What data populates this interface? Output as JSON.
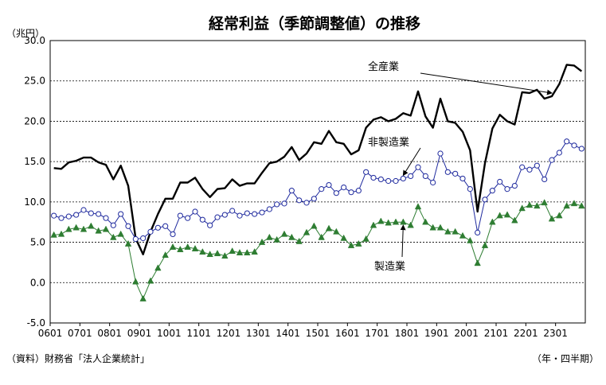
{
  "chart_data": {
    "type": "line",
    "title": "経常利益（季節調整値）の推移",
    "ylabel": "（兆円）",
    "xlabel_note": "（年・四半期）",
    "source": "（資料）財務省「法人企業統計」",
    "ylim": [
      -5.0,
      30.0
    ],
    "yticks": [
      "30.0",
      "25.0",
      "20.0",
      "15.0",
      "10.0",
      "5.0",
      "0.0",
      "-5.0"
    ],
    "xtick_labels": [
      "0601",
      "0701",
      "0801",
      "0901",
      "1001",
      "1101",
      "1201",
      "1301",
      "1401",
      "1501",
      "1601",
      "1701",
      "1801",
      "1901",
      "2001",
      "2101",
      "2201",
      "2301"
    ],
    "grid": "horizontal-dashed",
    "series": [
      {
        "name": "全産業",
        "color": "#000000",
        "marker": "none",
        "values": [
          14.2,
          14.1,
          14.9,
          15.1,
          15.5,
          15.5,
          14.9,
          14.6,
          12.8,
          14.5,
          12.0,
          5.5,
          3.5,
          6.3,
          8.5,
          10.4,
          10.4,
          12.4,
          12.4,
          13.0,
          11.6,
          10.6,
          11.6,
          11.7,
          12.8,
          12.0,
          12.3,
          12.3,
          13.6,
          14.8,
          15.0,
          15.6,
          16.8,
          15.2,
          16.0,
          17.4,
          17.2,
          18.8,
          17.4,
          17.2,
          15.9,
          16.4,
          19.2,
          20.2,
          20.5,
          20.0,
          20.3,
          21.0,
          20.7,
          23.7,
          20.6,
          19.2,
          22.8,
          20.0,
          19.8,
          18.7,
          16.4,
          8.8,
          14.8,
          19.1,
          20.8,
          20.0,
          19.6,
          23.6,
          23.5,
          23.9,
          22.8,
          23.1,
          24.6,
          27.0,
          26.9,
          26.2
        ]
      },
      {
        "name": "非製造業",
        "color": "#1f2a9e",
        "marker": "circle",
        "values": [
          8.3,
          8.0,
          8.2,
          8.4,
          9.0,
          8.6,
          8.5,
          8.0,
          7.1,
          8.5,
          7.0,
          5.4,
          5.5,
          6.3,
          6.8,
          7.0,
          6.0,
          8.3,
          8.0,
          8.8,
          7.8,
          7.1,
          8.1,
          8.4,
          8.9,
          8.3,
          8.6,
          8.5,
          8.7,
          9.1,
          9.7,
          9.8,
          11.4,
          10.2,
          9.9,
          10.4,
          11.6,
          12.1,
          11.1,
          11.8,
          11.2,
          11.4,
          13.7,
          13.0,
          12.8,
          12.6,
          12.6,
          12.9,
          13.2,
          14.3,
          13.2,
          12.4,
          16.0,
          13.7,
          13.5,
          12.9,
          11.6,
          6.2,
          10.3,
          11.4,
          12.5,
          11.6,
          12.0,
          14.3,
          14.0,
          14.5,
          12.8,
          15.2,
          16.1,
          17.5,
          17.0,
          16.6
        ]
      },
      {
        "name": "製造業",
        "color": "#2e7d32",
        "marker": "triangle",
        "values": [
          5.9,
          6.0,
          6.6,
          6.8,
          6.6,
          7.0,
          6.4,
          6.6,
          5.6,
          6.0,
          4.8,
          0.1,
          -2.0,
          0.2,
          1.8,
          3.4,
          4.4,
          4.1,
          4.4,
          4.2,
          3.8,
          3.5,
          3.6,
          3.3,
          3.9,
          3.7,
          3.7,
          3.8,
          5.0,
          5.6,
          5.3,
          6.0,
          5.6,
          5.1,
          6.2,
          7.0,
          5.6,
          6.7,
          6.3,
          5.5,
          4.6,
          4.8,
          5.4,
          7.1,
          7.6,
          7.4,
          7.5,
          7.5,
          7.1,
          9.4,
          7.5,
          6.8,
          6.8,
          6.3,
          6.3,
          5.8,
          5.2,
          2.4,
          4.6,
          7.5,
          8.3,
          8.4,
          7.7,
          9.2,
          9.6,
          9.5,
          9.9,
          7.9,
          8.3,
          9.5,
          9.8,
          9.5
        ]
      }
    ],
    "annotations": [
      {
        "text": "全産業",
        "series": "全産業",
        "index": 67
      },
      {
        "text": "非製造業",
        "series": "非製造業",
        "index": 47
      },
      {
        "text": "製造業",
        "series": "製造業",
        "index": 47
      }
    ]
  }
}
